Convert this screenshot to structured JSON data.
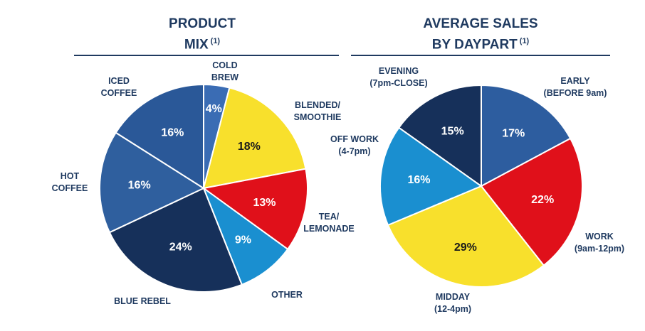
{
  "chart_data": [
    {
      "type": "pie",
      "title_line1": "PRODUCT",
      "title_line2": "MIX",
      "footnote": "(1)",
      "slices": [
        {
          "label": [
            "COLD",
            "BREW"
          ],
          "value": 4,
          "pct": "4%",
          "color": "#3a6cb4",
          "text": "#ffffff"
        },
        {
          "label": [
            "BLENDED/",
            "SMOOTHIE"
          ],
          "value": 18,
          "pct": "18%",
          "color": "#f8e02c",
          "text": "#1a1a1a"
        },
        {
          "label": [
            "TEA/",
            "LEMONADE"
          ],
          "value": 13,
          "pct": "13%",
          "color": "#e0101a",
          "text": "#ffffff"
        },
        {
          "label": [
            "OTHER"
          ],
          "value": 9,
          "pct": "9%",
          "color": "#1a8fd0",
          "text": "#ffffff"
        },
        {
          "label": [
            "BLUE REBEL"
          ],
          "value": 24,
          "pct": "24%",
          "color": "#16305a",
          "text": "#ffffff"
        },
        {
          "label": [
            "HOT",
            "COFFEE"
          ],
          "value": 16,
          "pct": "16%",
          "color": "#2f5f9e",
          "text": "#ffffff"
        },
        {
          "label": [
            "ICED",
            "COFFEE"
          ],
          "value": 16,
          "pct": "16%",
          "color": "#2a5898",
          "text": "#ffffff"
        }
      ]
    },
    {
      "type": "pie",
      "title_line1": "AVERAGE SALES",
      "title_line2": "BY DAYPART",
      "footnote": "(1)",
      "slices": [
        {
          "label": [
            "EARLY",
            "(BEFORE 9am)"
          ],
          "value": 17,
          "pct": "17%",
          "color": "#2d5d9f",
          "text": "#ffffff"
        },
        {
          "label": [
            "WORK",
            "(9am-12pm)"
          ],
          "value": 22,
          "pct": "22%",
          "color": "#e0101a",
          "text": "#ffffff"
        },
        {
          "label": [
            "MIDDAY",
            "(12-4pm)"
          ],
          "value": 29,
          "pct": "29%",
          "color": "#f8e02c",
          "text": "#1a1a1a"
        },
        {
          "label": [
            "OFF WORK",
            "(4-7pm)"
          ],
          "value": 16,
          "pct": "16%",
          "color": "#1a8fd0",
          "text": "#ffffff"
        },
        {
          "label": [
            "EVENING",
            "(7pm-CLOSE)"
          ],
          "value": 15,
          "pct": "15%",
          "color": "#16305a",
          "text": "#ffffff"
        }
      ]
    }
  ]
}
